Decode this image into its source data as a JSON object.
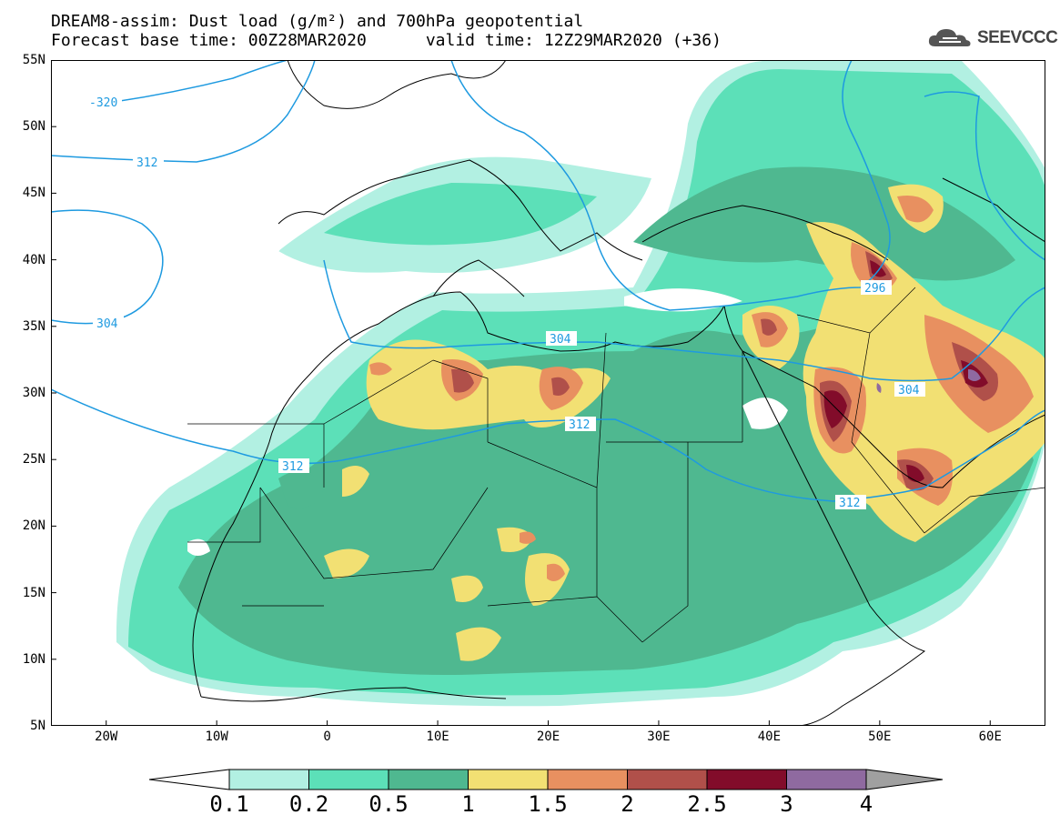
{
  "title": {
    "line1": "DREAM8-assim: Dust load (g/m²) and 700hPa geopotential",
    "line2_left": "Forecast base time: 00Z28MAR2020",
    "line2_right": "valid time: 12Z29MAR2020 (+36)"
  },
  "logo": {
    "text": "SEEVCCC",
    "icon": "cloud-icon"
  },
  "map": {
    "lon_range": [
      -25,
      65
    ],
    "lat_range": [
      5,
      55
    ],
    "lat_labels": [
      "55N",
      "50N",
      "45N",
      "40N",
      "35N",
      "30N",
      "25N",
      "20N",
      "15N",
      "10N",
      "5N"
    ],
    "lon_labels": [
      "20W",
      "10W",
      "0",
      "10E",
      "20E",
      "30E",
      "40E",
      "50E",
      "60E"
    ],
    "contour_labels": [
      "-320",
      "312",
      "304",
      "304",
      "312",
      "312",
      "296",
      "304",
      "312"
    ],
    "contour_color": "#1e9ae0"
  },
  "colorbar": {
    "levels": [
      "0.1",
      "0.2",
      "0.5",
      "1",
      "1.5",
      "2",
      "2.5",
      "3",
      "4"
    ],
    "colors": [
      "#b2f0e2",
      "#5ce0b8",
      "#4fb890",
      "#f2e073",
      "#e89060",
      "#b0504a",
      "#820c2a",
      "#8f6aa0"
    ],
    "under_color": "#ffffff",
    "over_color": "#a0a0a0"
  }
}
